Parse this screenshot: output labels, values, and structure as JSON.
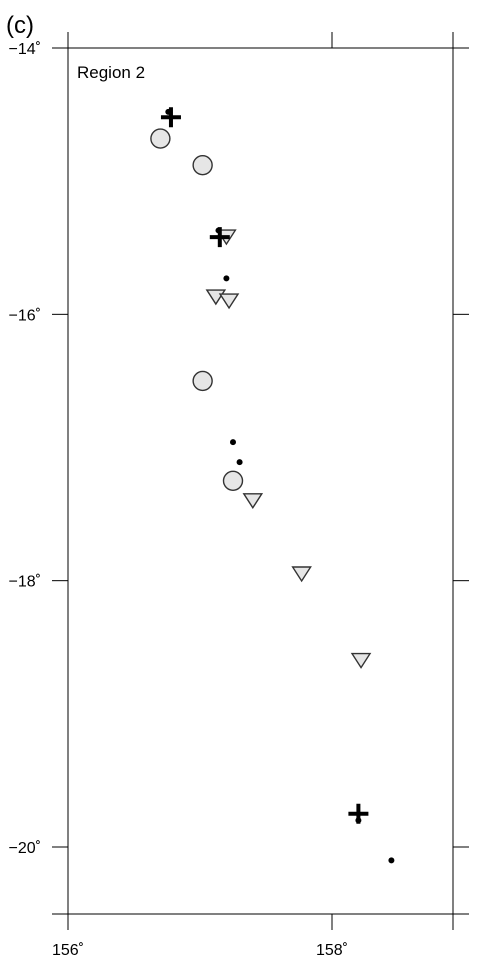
{
  "panel_label": "(c)",
  "region_label": "Region 2",
  "colors": {
    "frame": "#000000",
    "marker_fill": "#e6e6e6",
    "marker_stroke": "#333333"
  },
  "chart_data": {
    "type": "scatter",
    "title": "",
    "xlabel": "",
    "ylabel": "",
    "xlim": [
      156.0,
      158.9
    ],
    "ylim": [
      -20.5,
      -14.0
    ],
    "x_ticks": [
      {
        "value": 156,
        "label": "156˚"
      },
      {
        "value": 158,
        "label": "158˚"
      }
    ],
    "y_ticks": [
      {
        "value": -14,
        "label": "−14˚"
      },
      {
        "value": -16,
        "label": "−16˚"
      },
      {
        "value": -18,
        "label": "−18˚"
      },
      {
        "value": -20,
        "label": "−20˚"
      }
    ],
    "grid": false,
    "series": [
      {
        "symbol": "cross",
        "points": [
          [
            156.78,
            -14.52
          ],
          [
            157.15,
            -15.42
          ],
          [
            158.2,
            -19.75
          ]
        ]
      },
      {
        "symbol": "circle",
        "points": [
          [
            156.7,
            -14.68
          ],
          [
            157.02,
            -14.88
          ],
          [
            157.02,
            -16.5
          ],
          [
            157.25,
            -17.25
          ]
        ]
      },
      {
        "symbol": "triangle-down",
        "points": [
          [
            157.2,
            -15.42
          ],
          [
            157.12,
            -15.87
          ],
          [
            157.22,
            -15.9
          ],
          [
            157.4,
            -17.4
          ],
          [
            157.77,
            -17.95
          ],
          [
            158.22,
            -18.6
          ]
        ]
      },
      {
        "symbol": "dot",
        "points": [
          [
            156.76,
            -14.48
          ],
          [
            157.14,
            -15.37
          ],
          [
            157.2,
            -15.73
          ],
          [
            157.25,
            -16.96
          ],
          [
            157.3,
            -17.11
          ],
          [
            158.2,
            -19.8
          ],
          [
            158.45,
            -20.1
          ]
        ]
      }
    ]
  }
}
